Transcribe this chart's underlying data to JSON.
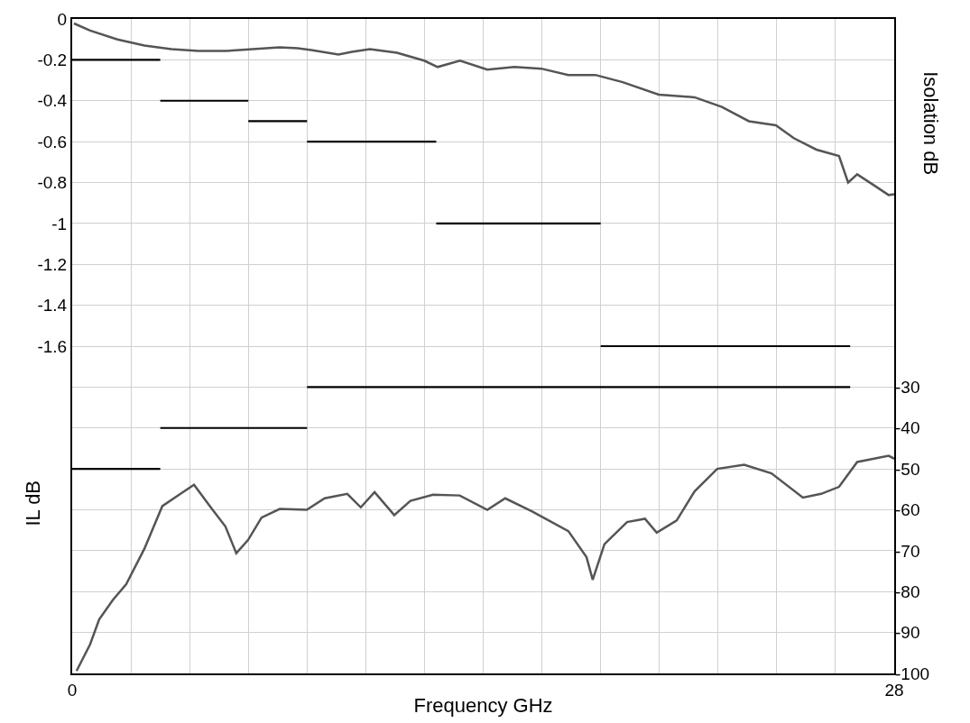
{
  "chart_data": {
    "type": "line",
    "xlabel": "Frequency GHz",
    "ylabel": "IL dB",
    "y2label": "Isolation dB",
    "xlim": [
      0,
      28
    ],
    "xticks": [
      0,
      {
        "value": 2,
        "label": null
      },
      {
        "value": 4,
        "label": null
      },
      {
        "value": 6,
        "label": null
      },
      {
        "value": 8,
        "label": null
      },
      {
        "value": 10,
        "label": null
      },
      {
        "value": 12,
        "label": null
      },
      {
        "value": 14,
        "label": null
      },
      {
        "value": 16,
        "label": null
      },
      {
        "value": 18,
        "label": null
      },
      {
        "value": 20,
        "label": null
      },
      {
        "value": 22,
        "label": null
      },
      {
        "value": 24,
        "label": null
      },
      {
        "value": 26,
        "label": null
      },
      28
    ],
    "ylim": [
      -3.2,
      0
    ],
    "yticks": [
      0,
      -0.2,
      -0.4,
      -0.6,
      -0.8,
      -1,
      -1.2,
      -1.4,
      -1.6,
      {
        "value": -1.8,
        "label": null
      },
      {
        "value": -2.0,
        "label": null
      },
      {
        "value": -2.2,
        "label": null
      },
      {
        "value": -2.4,
        "label": null
      },
      {
        "value": -2.6,
        "label": null
      },
      {
        "value": -2.8,
        "label": null
      },
      {
        "value": -3.0,
        "label": null
      },
      {
        "value": -3.2,
        "label": null
      }
    ],
    "y2lim": [
      -100,
      60
    ],
    "y2ticks": [
      -30,
      -40,
      -50,
      -60,
      -70,
      -80,
      -90,
      -100
    ],
    "grid": true,
    "marker": "none",
    "line_style": "solid",
    "series": [
      {
        "color": "#555555",
        "x": [
          0.06,
          0.61,
          1.54,
          2.46,
          3.38,
          4.3,
          5.22,
          6.15,
          7.07,
          7.68,
          8.14,
          9.07,
          9.53,
          10.14,
          11.06,
          11.99,
          12.45,
          13.21,
          14.14,
          15.06,
          15.98,
          16.9,
          17.82,
          18.75,
          19.98,
          21.2,
          22.13,
          23.05,
          23.97,
          24.58,
          25.35,
          26.12,
          26.43,
          26.74,
          27.35,
          27.81,
          28
        ],
        "values": [
          -0.022,
          -0.057,
          -0.1,
          -0.13,
          -0.148,
          -0.157,
          -0.157,
          -0.148,
          -0.139,
          -0.143,
          -0.152,
          -0.174,
          -0.161,
          -0.148,
          -0.165,
          -0.204,
          -0.235,
          -0.204,
          -0.248,
          -0.235,
          -0.243,
          -0.274,
          -0.274,
          -0.309,
          -0.37,
          -0.383,
          -0.43,
          -0.5,
          -0.52,
          -0.583,
          -0.639,
          -0.67,
          -0.8,
          -0.76,
          -0.817,
          -0.861,
          -0.857
        ]
      },
      {
        "color": "#555555",
        "axis": "y2",
        "x": [
          0.15,
          0.61,
          0.92,
          1.38,
          1.84,
          2.46,
          3.07,
          3.69,
          4.15,
          4.76,
          5.22,
          5.59,
          5.99,
          6.45,
          7.07,
          7.99,
          8.6,
          9.37,
          9.83,
          10.3,
          10.97,
          11.52,
          12.29,
          13.2,
          14.14,
          14.75,
          15.67,
          16.9,
          17.52,
          17.73,
          18.13,
          18.9,
          19.51,
          19.91,
          20.59,
          21.2,
          21.97,
          22.89,
          23.82,
          24.89,
          25.51,
          26.12,
          26.74,
          27.81,
          28
        ],
        "values": [
          -99.4,
          -92.9,
          -86.8,
          -82.1,
          -78.2,
          -69.5,
          -59.1,
          -56.1,
          -53.9,
          -59.8,
          -64.1,
          -70.6,
          -67.4,
          -61.9,
          -59.8,
          -60,
          -57.2,
          -56.1,
          -59.4,
          -55.7,
          -61.3,
          -57.8,
          -56.3,
          -56.5,
          -60,
          -57.2,
          -60.4,
          -65.2,
          -71.6,
          -77.1,
          -68.4,
          -63,
          -62.2,
          -65.6,
          -62.6,
          -55.5,
          -50,
          -49,
          -51.1,
          -57,
          -56.1,
          -54.4,
          -48.3,
          -46.8,
          -47.5
        ]
      },
      {
        "color": "#000000",
        "x": [
          0,
          3
        ],
        "values": [
          -0.2,
          -0.2
        ]
      },
      {
        "color": "#000000",
        "x": [
          3,
          6
        ],
        "values": [
          -0.4,
          -0.4
        ]
      },
      {
        "color": "#000000",
        "x": [
          6,
          8
        ],
        "values": [
          -0.5,
          -0.5
        ]
      },
      {
        "color": "#000000",
        "x": [
          8,
          12.4
        ],
        "values": [
          -0.6,
          -0.6
        ]
      },
      {
        "color": "#000000",
        "x": [
          12.4,
          18
        ],
        "values": [
          -1,
          -1
        ]
      },
      {
        "color": "#000000",
        "x": [
          18,
          26.5
        ],
        "values": [
          -1.6,
          -1.6
        ]
      },
      {
        "color": "#000000",
        "axis": "y2",
        "x": [
          0,
          3
        ],
        "values": [
          -50,
          -50
        ]
      },
      {
        "color": "#000000",
        "axis": "y2",
        "x": [
          3,
          8
        ],
        "values": [
          -40,
          -40
        ]
      },
      {
        "color": "#000000",
        "axis": "y2",
        "x": [
          8,
          26.5
        ],
        "values": [
          -30,
          -30
        ]
      }
    ]
  }
}
